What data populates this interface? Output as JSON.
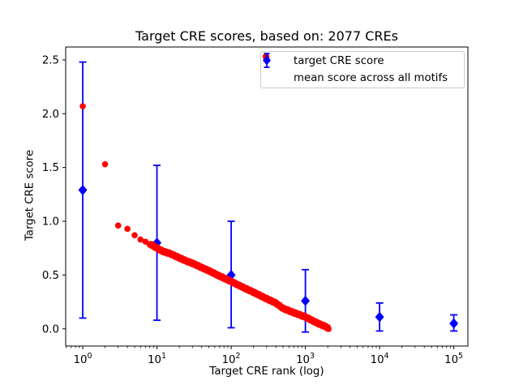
{
  "chart_data": {
    "type": "scatter",
    "title": "Target CRE scores, based on: 2077 CREs",
    "xlabel": "Target CRE rank (log)",
    "ylabel": "Target CRE score",
    "x_scale": "log",
    "x_tick_exponents": [
      0,
      1,
      2,
      3,
      4,
      5
    ],
    "y_ticks": [
      "0.0",
      "0.5",
      "1.0",
      "1.5",
      "2.0",
      "2.5"
    ],
    "xlim_log10": [
      -0.23,
      5.19
    ],
    "ylim": [
      -0.16,
      2.62
    ],
    "grid": false,
    "legend_position": "upper right",
    "n_cres": 2077,
    "series": [
      {
        "name": "target CRE score",
        "marker": "circle",
        "color": "#ff0000",
        "dense_band_from_rank": 8,
        "max_rank": 2077,
        "points": [
          [
            1,
            2.07
          ],
          [
            2,
            1.53
          ],
          [
            3,
            0.96
          ],
          [
            4,
            0.93
          ],
          [
            5,
            0.87
          ],
          [
            6,
            0.83
          ],
          [
            7,
            0.81
          ],
          [
            8,
            0.79
          ],
          [
            9,
            0.77
          ],
          [
            10,
            0.75
          ],
          [
            12,
            0.72
          ],
          [
            15,
            0.7
          ],
          [
            20,
            0.66
          ],
          [
            25,
            0.63
          ],
          [
            30,
            0.61
          ],
          [
            40,
            0.57
          ],
          [
            50,
            0.54
          ],
          [
            70,
            0.49
          ],
          [
            100,
            0.44
          ],
          [
            150,
            0.38
          ],
          [
            200,
            0.34
          ],
          [
            300,
            0.28
          ],
          [
            400,
            0.24
          ],
          [
            500,
            0.19
          ],
          [
            700,
            0.15
          ],
          [
            1000,
            0.11
          ],
          [
            1300,
            0.07
          ],
          [
            1600,
            0.04
          ],
          [
            1900,
            0.02
          ],
          [
            2077,
            0.0
          ]
        ]
      },
      {
        "name": "mean score across all motifs",
        "marker": "diamond",
        "color": "#0000ff",
        "points": [
          {
            "x": 1,
            "y": 1.29,
            "err_low": 1.19,
            "err_high": 1.19
          },
          {
            "x": 10,
            "y": 0.8,
            "err_low": 0.72,
            "err_high": 0.72
          },
          {
            "x": 100,
            "y": 0.5,
            "err_low": 0.49,
            "err_high": 0.5
          },
          {
            "x": 1000,
            "y": 0.26,
            "err_low": 0.29,
            "err_high": 0.29
          },
          {
            "x": 10000,
            "y": 0.11,
            "err_low": 0.13,
            "err_high": 0.13
          },
          {
            "x": 100000,
            "y": 0.05,
            "err_low": 0.07,
            "err_high": 0.08
          }
        ]
      }
    ]
  }
}
